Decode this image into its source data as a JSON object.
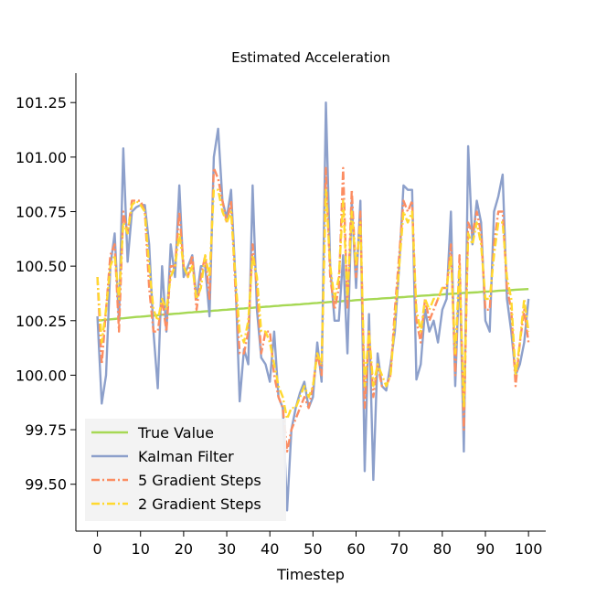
{
  "chart_data": {
    "type": "line",
    "title": "Estimated Acceleration",
    "xlabel": "Timestep",
    "ylabel": "",
    "xlim": [
      -5,
      104
    ],
    "ylim": [
      99.285,
      101.385
    ],
    "xticks": [
      0,
      10,
      20,
      30,
      40,
      50,
      60,
      70,
      80,
      90,
      100
    ],
    "xtick_labels": [
      "0",
      "10",
      "20",
      "30",
      "40",
      "50",
      "60",
      "70",
      "80",
      "90",
      "100"
    ],
    "yticks": [
      99.5,
      99.75,
      100.0,
      100.25,
      100.5,
      100.75,
      101.0,
      101.25
    ],
    "ytick_labels": [
      "99.50",
      "99.75",
      "100.00",
      "100.25",
      "100.50",
      "100.75",
      "101.00",
      "101.25"
    ],
    "legend_position": "lower-left",
    "grid": false,
    "series": [
      {
        "name": "True Value",
        "color": "#a6d854",
        "style": "solid",
        "x_start": 0,
        "x_step": 1,
        "y": [
          100.25,
          100.252,
          100.254,
          100.256,
          100.258,
          100.26,
          100.261,
          100.263,
          100.265,
          100.267,
          100.268,
          100.27,
          100.272,
          100.273,
          100.275,
          100.277,
          100.278,
          100.28,
          100.282,
          100.283,
          100.285,
          100.287,
          100.288,
          100.29,
          100.291,
          100.293,
          100.294,
          100.296,
          100.297,
          100.299,
          100.3,
          100.302,
          100.303,
          100.305,
          100.306,
          100.308,
          100.309,
          100.311,
          100.312,
          100.314,
          100.315,
          100.317,
          100.318,
          100.32,
          100.321,
          100.322,
          100.324,
          100.325,
          100.327,
          100.328,
          100.33,
          100.331,
          100.333,
          100.334,
          100.336,
          100.337,
          100.338,
          100.34,
          100.341,
          100.342,
          100.344,
          100.345,
          100.346,
          100.348,
          100.349,
          100.35,
          100.352,
          100.353,
          100.354,
          100.356,
          100.357,
          100.358,
          100.36,
          100.361,
          100.362,
          100.364,
          100.365,
          100.366,
          100.368,
          100.369,
          100.37,
          100.372,
          100.373,
          100.374,
          100.375,
          100.377,
          100.378,
          100.379,
          100.38,
          100.382,
          100.383,
          100.384,
          100.385,
          100.387,
          100.388,
          100.389,
          100.39,
          100.392,
          100.393,
          100.394,
          100.395
        ]
      },
      {
        "name": "Kalman Filter",
        "color": "#8da0cb",
        "style": "solid",
        "x_start": 0,
        "x_step": 1,
        "y": [
          100.27,
          99.87,
          100.0,
          100.5,
          100.65,
          100.25,
          101.04,
          100.52,
          100.75,
          100.77,
          100.78,
          100.78,
          100.6,
          100.2,
          99.94,
          100.5,
          100.2,
          100.6,
          100.45,
          100.87,
          100.45,
          100.5,
          100.55,
          100.35,
          100.5,
          100.5,
          100.27,
          101.0,
          101.13,
          100.8,
          100.72,
          100.85,
          100.45,
          99.88,
          100.12,
          100.05,
          100.87,
          100.3,
          100.08,
          100.05,
          99.97,
          100.2,
          99.9,
          99.85,
          99.38,
          99.75,
          99.85,
          99.92,
          99.97,
          99.85,
          99.9,
          100.15,
          99.97,
          101.25,
          100.5,
          100.25,
          100.25,
          100.55,
          100.1,
          100.8,
          100.4,
          100.8,
          99.56,
          100.28,
          99.52,
          100.1,
          99.95,
          99.93,
          100.05,
          100.2,
          100.5,
          100.87,
          100.85,
          100.85,
          99.98,
          100.05,
          100.3,
          100.2,
          100.25,
          100.15,
          100.3,
          100.35,
          100.75,
          99.95,
          100.5,
          99.65,
          101.05,
          100.6,
          100.8,
          100.7,
          100.25,
          100.2,
          100.75,
          100.82,
          100.92,
          100.35,
          100.2,
          100.0,
          100.05,
          100.15,
          100.35
        ]
      },
      {
        "name": "5 Gradient Steps",
        "color": "#fc8d62",
        "style": "dashdot",
        "x_start": 0,
        "x_step": 1,
        "y": [
          100.45,
          100.05,
          100.3,
          100.55,
          100.6,
          100.2,
          100.75,
          100.65,
          100.8,
          100.8,
          100.8,
          100.75,
          100.4,
          100.2,
          100.2,
          100.35,
          100.2,
          100.5,
          100.5,
          100.75,
          100.5,
          100.45,
          100.55,
          100.3,
          100.45,
          100.55,
          100.35,
          100.95,
          100.9,
          100.8,
          100.7,
          100.8,
          100.4,
          100.1,
          100.1,
          100.2,
          100.6,
          100.4,
          100.1,
          100.2,
          100.2,
          100.0,
          99.9,
          99.85,
          99.65,
          99.75,
          99.8,
          99.85,
          99.9,
          99.85,
          99.95,
          100.1,
          100.0,
          100.95,
          100.45,
          100.3,
          100.4,
          100.95,
          100.3,
          100.85,
          100.45,
          100.75,
          99.85,
          100.2,
          99.9,
          100.05,
          99.95,
          99.95,
          100.0,
          100.3,
          100.55,
          100.8,
          100.75,
          100.8,
          100.25,
          100.15,
          100.35,
          100.25,
          100.3,
          100.35,
          100.4,
          100.4,
          100.6,
          100.0,
          100.55,
          99.75,
          100.7,
          100.65,
          100.75,
          100.65,
          100.3,
          100.3,
          100.6,
          100.75,
          100.75,
          100.4,
          100.3,
          99.95,
          100.15,
          100.3,
          100.15
        ]
      },
      {
        "name": "2 Gradient Steps",
        "color": "#ffd92f",
        "style": "dashdot",
        "x_start": 0,
        "x_step": 1,
        "y": [
          100.45,
          100.15,
          100.3,
          100.5,
          100.55,
          100.35,
          100.7,
          100.65,
          100.78,
          100.8,
          100.78,
          100.75,
          100.5,
          100.3,
          100.25,
          100.35,
          100.3,
          100.45,
          100.5,
          100.65,
          100.5,
          100.45,
          100.5,
          100.35,
          100.4,
          100.55,
          100.45,
          100.85,
          100.85,
          100.75,
          100.7,
          100.75,
          100.45,
          100.2,
          100.15,
          100.25,
          100.55,
          100.45,
          100.2,
          100.2,
          100.15,
          100.05,
          99.95,
          99.9,
          99.8,
          99.85,
          99.85,
          99.9,
          99.95,
          99.9,
          99.95,
          100.1,
          100.05,
          100.85,
          100.5,
          100.35,
          100.45,
          100.8,
          100.35,
          100.75,
          100.5,
          100.7,
          99.95,
          100.2,
          99.95,
          100.05,
          100.0,
          99.95,
          100.0,
          100.25,
          100.5,
          100.75,
          100.7,
          100.75,
          100.3,
          100.2,
          100.35,
          100.3,
          100.35,
          100.35,
          100.4,
          100.4,
          100.55,
          100.1,
          100.5,
          99.85,
          100.65,
          100.6,
          100.7,
          100.6,
          100.35,
          100.35,
          100.55,
          100.7,
          100.7,
          100.45,
          100.35,
          100.0,
          100.15,
          100.35,
          100.2
        ]
      }
    ]
  }
}
